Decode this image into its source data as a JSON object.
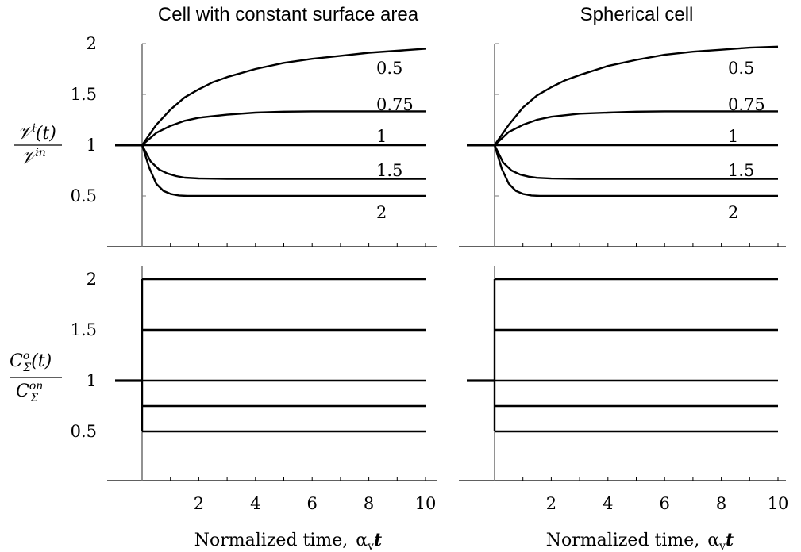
{
  "panels_layout": {
    "rows": 2,
    "cols": 2
  },
  "column_titles": [
    "Cell with constant surface area",
    "Spherical cell"
  ],
  "x_axis": {
    "label": "Normalized time,",
    "label_symbol": "α",
    "label_symbol_sub": "v",
    "label_symbol_var": "t",
    "ticks": [
      2,
      4,
      6,
      8,
      10
    ],
    "tick_labels": [
      "2",
      "4",
      "6",
      "8",
      "10"
    ]
  },
  "y_axes": {
    "top": {
      "numerator": "𝒱",
      "numerator_sup": "i",
      "numerator_arg": "(t)",
      "denominator": "𝒱",
      "denominator_sup": "in",
      "ticks": [
        0.5,
        1,
        1.5,
        2
      ],
      "tick_labels": [
        "0.5",
        "1",
        "1.5",
        "2"
      ]
    },
    "bottom": {
      "numerator": "C",
      "numerator_sup": "o",
      "numerator_sub": "Σ",
      "numerator_arg": "(t)",
      "denominator": "C",
      "denominator_sup": "on",
      "denominator_sub": "Σ",
      "ticks": [
        0.5,
        1,
        1.5,
        2
      ],
      "tick_labels": [
        "0.5",
        "1",
        "1.5",
        "2"
      ]
    }
  },
  "chart_data": [
    {
      "type": "line",
      "title": "Cell with constant surface area",
      "panel": "top-left",
      "xlim": [
        -1.3,
        10.1
      ],
      "ylim": [
        0,
        2.1
      ],
      "series": [
        {
          "name": "0.5",
          "x": [
            -1,
            0,
            0.5,
            1,
            1.5,
            2,
            2.5,
            3,
            4,
            5,
            6,
            7,
            8,
            9,
            10
          ],
          "values": [
            1,
            1,
            1.2,
            1.35,
            1.47,
            1.55,
            1.62,
            1.67,
            1.75,
            1.81,
            1.85,
            1.88,
            1.91,
            1.93,
            1.95
          ]
        },
        {
          "name": "0.75",
          "x": [
            -1,
            0,
            0.5,
            1,
            1.5,
            2,
            3,
            4,
            5,
            6,
            8,
            10
          ],
          "values": [
            1,
            1,
            1.12,
            1.19,
            1.24,
            1.27,
            1.3,
            1.32,
            1.33,
            1.333,
            1.333,
            1.333
          ]
        },
        {
          "name": "1",
          "x": [
            -1,
            10
          ],
          "values": [
            1,
            1
          ]
        },
        {
          "name": "1.5",
          "x": [
            -1,
            0,
            0.3,
            0.6,
            0.9,
            1.2,
            1.5,
            2,
            3,
            4,
            6,
            10
          ],
          "values": [
            1,
            1,
            0.84,
            0.76,
            0.72,
            0.695,
            0.68,
            0.672,
            0.668,
            0.667,
            0.667,
            0.667
          ]
        },
        {
          "name": "2",
          "x": [
            -1,
            0,
            0.25,
            0.5,
            0.75,
            1,
            1.3,
            1.6,
            2,
            3,
            5,
            10
          ],
          "values": [
            1,
            1,
            0.78,
            0.62,
            0.55,
            0.52,
            0.505,
            0.5,
            0.5,
            0.5,
            0.5,
            0.5
          ]
        }
      ],
      "annotations": [
        "0.5",
        "0.75",
        "1",
        "1.5",
        "2"
      ]
    },
    {
      "type": "line",
      "title": "Spherical cell",
      "panel": "top-right",
      "xlim": [
        -1.3,
        10.1
      ],
      "ylim": [
        0,
        2.1
      ],
      "series": [
        {
          "name": "0.5",
          "x": [
            -1,
            0,
            0.5,
            1,
            1.5,
            2,
            2.5,
            3,
            4,
            5,
            6,
            7,
            8,
            9,
            10
          ],
          "values": [
            1,
            1,
            1.2,
            1.37,
            1.49,
            1.57,
            1.64,
            1.69,
            1.78,
            1.84,
            1.89,
            1.92,
            1.94,
            1.96,
            1.97
          ]
        },
        {
          "name": "0.75",
          "x": [
            -1,
            0,
            0.5,
            1,
            1.5,
            2,
            3,
            4,
            5,
            6,
            8,
            10
          ],
          "values": [
            1,
            1,
            1.13,
            1.2,
            1.25,
            1.28,
            1.31,
            1.32,
            1.33,
            1.333,
            1.333,
            1.333
          ]
        },
        {
          "name": "1",
          "x": [
            -1,
            10
          ],
          "values": [
            1,
            1
          ]
        },
        {
          "name": "1.5",
          "x": [
            -1,
            0,
            0.3,
            0.6,
            0.9,
            1.2,
            1.5,
            2,
            3,
            4,
            6,
            10
          ],
          "values": [
            1,
            1,
            0.83,
            0.75,
            0.71,
            0.69,
            0.678,
            0.671,
            0.668,
            0.667,
            0.667,
            0.667
          ]
        },
        {
          "name": "2",
          "x": [
            -1,
            0,
            0.25,
            0.5,
            0.75,
            1,
            1.3,
            1.6,
            2,
            3,
            5,
            10
          ],
          "values": [
            1,
            1,
            0.77,
            0.62,
            0.55,
            0.52,
            0.505,
            0.5,
            0.5,
            0.5,
            0.5,
            0.5
          ]
        }
      ],
      "annotations": [
        "0.5",
        "0.75",
        "1",
        "1.5",
        "2"
      ]
    },
    {
      "type": "line",
      "title": "",
      "panel": "bottom-left",
      "xlim": [
        -1.3,
        10.1
      ],
      "ylim": [
        0.05,
        2.1
      ],
      "series": [
        {
          "x": [
            -1,
            0
          ],
          "values": [
            1,
            1
          ]
        },
        {
          "x": [
            0,
            0
          ],
          "values": [
            0.5,
            2
          ]
        },
        {
          "x": [
            0,
            10
          ],
          "values": [
            2,
            2
          ]
        },
        {
          "x": [
            0,
            10
          ],
          "values": [
            1.5,
            1.5
          ]
        },
        {
          "x": [
            0,
            10
          ],
          "values": [
            1,
            1
          ]
        },
        {
          "x": [
            0,
            10
          ],
          "values": [
            0.75,
            0.75
          ]
        },
        {
          "x": [
            0,
            10
          ],
          "values": [
            0.5,
            0.5
          ]
        }
      ]
    },
    {
      "type": "line",
      "title": "",
      "panel": "bottom-right",
      "xlim": [
        -1.3,
        10.1
      ],
      "ylim": [
        0.05,
        2.1
      ],
      "series": [
        {
          "x": [
            -1,
            0
          ],
          "values": [
            1,
            1
          ]
        },
        {
          "x": [
            0,
            0
          ],
          "values": [
            0.5,
            2
          ]
        },
        {
          "x": [
            0,
            10
          ],
          "values": [
            2,
            2
          ]
        },
        {
          "x": [
            0,
            10
          ],
          "values": [
            1.5,
            1.5
          ]
        },
        {
          "x": [
            0,
            10
          ],
          "values": [
            1,
            1
          ]
        },
        {
          "x": [
            0,
            10
          ],
          "values": [
            0.75,
            0.75
          ]
        },
        {
          "x": [
            0,
            10
          ],
          "values": [
            0.5,
            0.5
          ]
        }
      ]
    }
  ]
}
